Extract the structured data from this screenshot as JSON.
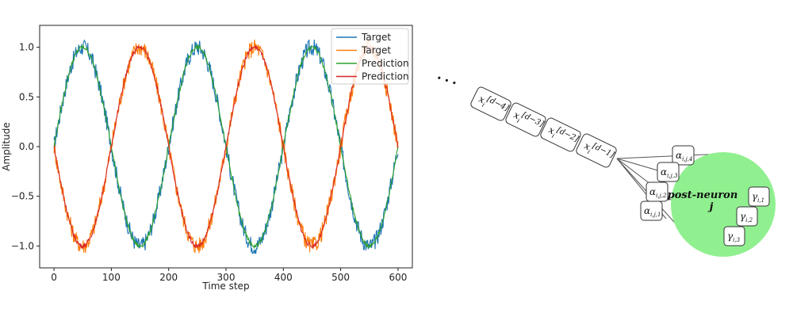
{
  "chart_data": {
    "type": "line",
    "xlabel": "Time step",
    "ylabel": "Amplitude",
    "xlim": [
      -25,
      625
    ],
    "ylim": [
      -1.22,
      1.22
    ],
    "xticks": [
      0,
      100,
      200,
      300,
      400,
      500,
      600
    ],
    "yticks": [
      -1.0,
      -0.5,
      0.0,
      0.5,
      1.0
    ],
    "xtick_labels": [
      "0",
      "100",
      "200",
      "300",
      "400",
      "500",
      "600"
    ],
    "ytick_labels": [
      "−1.0",
      "−0.5",
      "0.0",
      "0.5",
      "1.0"
    ],
    "legend_position": "top-right",
    "series": [
      {
        "name": "Target",
        "color": "#1f77b4",
        "amplitude": 1.0,
        "period": 200,
        "phase": 0,
        "noise": 0.08,
        "x_start": 0,
        "x_end": 600
      },
      {
        "name": "Target",
        "color": "#ff7f0e",
        "amplitude": -1.0,
        "period": 200,
        "phase": 0,
        "noise": 0.08,
        "x_start": 0,
        "x_end": 600
      },
      {
        "name": "Prediction",
        "color": "#2ca02c",
        "amplitude": 1.0,
        "period": 200,
        "phase": 0,
        "noise": 0.02,
        "x_start": 0,
        "x_end": 600
      },
      {
        "name": "Prediction",
        "color": "#d62728",
        "amplitude": -1.0,
        "period": 200,
        "phase": 0,
        "noise": 0.02,
        "x_start": 0,
        "x_end": 600
      }
    ]
  },
  "diagram": {
    "ellipsis": "• • •",
    "delays": [
      {
        "base": "x",
        "sub": "i",
        "sup": "[d−4]"
      },
      {
        "base": "x",
        "sub": "i",
        "sup": "[d−3]"
      },
      {
        "base": "x",
        "sub": "i",
        "sup": "[d−2]"
      },
      {
        "base": "x",
        "sub": "i",
        "sup": "[d−1]"
      }
    ],
    "alphas": [
      {
        "base": "α",
        "sub": "i,j,4"
      },
      {
        "base": "α",
        "sub": "i,j,3"
      },
      {
        "base": "α",
        "sub": "i,j,2"
      },
      {
        "base": "α",
        "sub": "i,j,1"
      }
    ],
    "neuron": {
      "line1": "post-neuron",
      "line2": "j",
      "fill": "#90f090"
    },
    "gammas": [
      {
        "base": "γ",
        "sub": "i,1"
      },
      {
        "base": "γ",
        "sub": "i,2"
      },
      {
        "base": "γ",
        "sub": "i,3"
      }
    ]
  }
}
